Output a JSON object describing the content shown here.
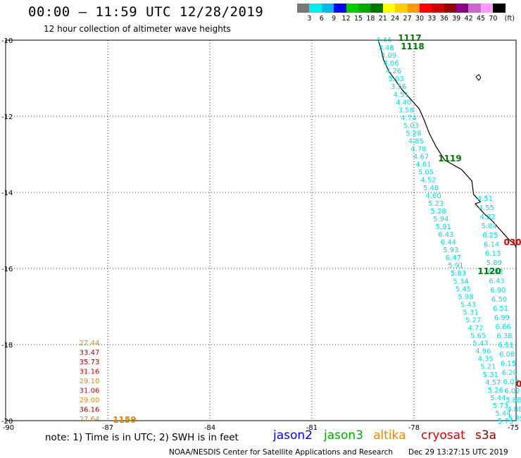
{
  "header": {
    "title": "00:00 — 11:59 UTC 12/28/2019",
    "subtitle": "12 hour collection of altimeter wave heights"
  },
  "colorbar": {
    "swatches": [
      "#777777",
      "#00eeee",
      "#00b8f0",
      "#0000ff",
      "#00cc00",
      "#00aa00",
      "#007700",
      "#ffff00",
      "#ffcc00",
      "#ff9900",
      "#ff0000",
      "#cc0000",
      "#990000",
      "#880088",
      "#cc66cc",
      "#ff99ff",
      "#000000"
    ],
    "labels": [
      "3",
      "6",
      "9",
      "12",
      "15",
      "18",
      "21",
      "24",
      "27",
      "30",
      "33",
      "36",
      "39",
      "42",
      "45",
      "70",
      "(ft)"
    ]
  },
  "map": {
    "x_ticks": [
      "-90",
      "-87",
      "-84",
      "-81",
      "-78",
      "-75"
    ],
    "y_ticks": [
      "-10",
      "-12",
      "-14",
      "-16",
      "-18",
      "-20"
    ],
    "track_color": "#00dddd",
    "coast_color": "#000000",
    "track_a_values": [
      "4.44",
      "3.48",
      "4.09",
      "4.06",
      "4.26",
      "5.03",
      "3.56",
      "4.51",
      "4.40",
      "3.58",
      "4.74",
      "5.03",
      "5.28",
      "4.85",
      "4.78",
      "4.67",
      "4.61",
      "5.05",
      "4.52",
      "5.48",
      "4.60",
      "5.23",
      "5.28",
      "5.94",
      "5.91",
      "6.43",
      "6.44",
      "5.93",
      "6.47",
      "5.91",
      "5.83",
      "5.34",
      "5.45",
      "5.98",
      "5.43",
      "5.31",
      "5.27",
      "4.72",
      "5.65",
      "5.47",
      "4.96",
      "4.35",
      "5.21",
      "5.31",
      "4.57",
      "5.26",
      "5.44",
      "5.73",
      "5.44",
      "5.73"
    ],
    "track_b_values": [
      "4.51",
      "4.55",
      "4.82",
      "5.84",
      "6.25",
      "6.14",
      "6.13",
      "5.89",
      "6.03",
      "6.43",
      "6.90",
      "6.50",
      "6.51",
      "6.99",
      "6.86",
      "6.38",
      "6.51",
      "6.08",
      "6.15",
      "6.20",
      "6.03",
      "6.02",
      "5.88",
      "4.88",
      "5.35"
    ],
    "left_values": [
      {
        "v": "27.44",
        "c": "#dd8800"
      },
      {
        "v": "33.47",
        "c": "#990000"
      },
      {
        "v": "35.73",
        "c": "#990000"
      },
      {
        "v": "31.16",
        "c": "#cc0000"
      },
      {
        "v": "29.10",
        "c": "#dd8800"
      },
      {
        "v": "31.06",
        "c": "#cc0000"
      },
      {
        "v": "29.00",
        "c": "#dd8800"
      },
      {
        "v": "36.16",
        "c": "#990000"
      },
      {
        "v": "27.64",
        "c": "#dd8800"
      }
    ],
    "time_labels": [
      {
        "t": "1117",
        "c": "#007700"
      },
      {
        "t": "1118",
        "c": "#007700"
      },
      {
        "t": "1119",
        "c": "#007700"
      },
      {
        "t": "1120",
        "c": "#007700"
      },
      {
        "t": "030",
        "c": "#dd0000"
      },
      {
        "t": "0",
        "c": "#dd0000"
      },
      {
        "t": "1159",
        "c": "#dd8800"
      }
    ]
  },
  "note": "note: 1) Time is in UTC; 2) SWH is in feet",
  "legend": [
    {
      "name": "jason2",
      "color": "#0000ee"
    },
    {
      "name": "jason3",
      "color": "#00aa00"
    },
    {
      "name": "altika",
      "color": "#ee8800"
    },
    {
      "name": "cryosat",
      "color": "#dd0000"
    },
    {
      "name": "s3a",
      "color": "#990000"
    }
  ],
  "footer": {
    "credit": "NOAA/NESDIS Center for Satellite Applications and Research",
    "stamp": "Dec 29 13:27:15 UTC 2019"
  }
}
